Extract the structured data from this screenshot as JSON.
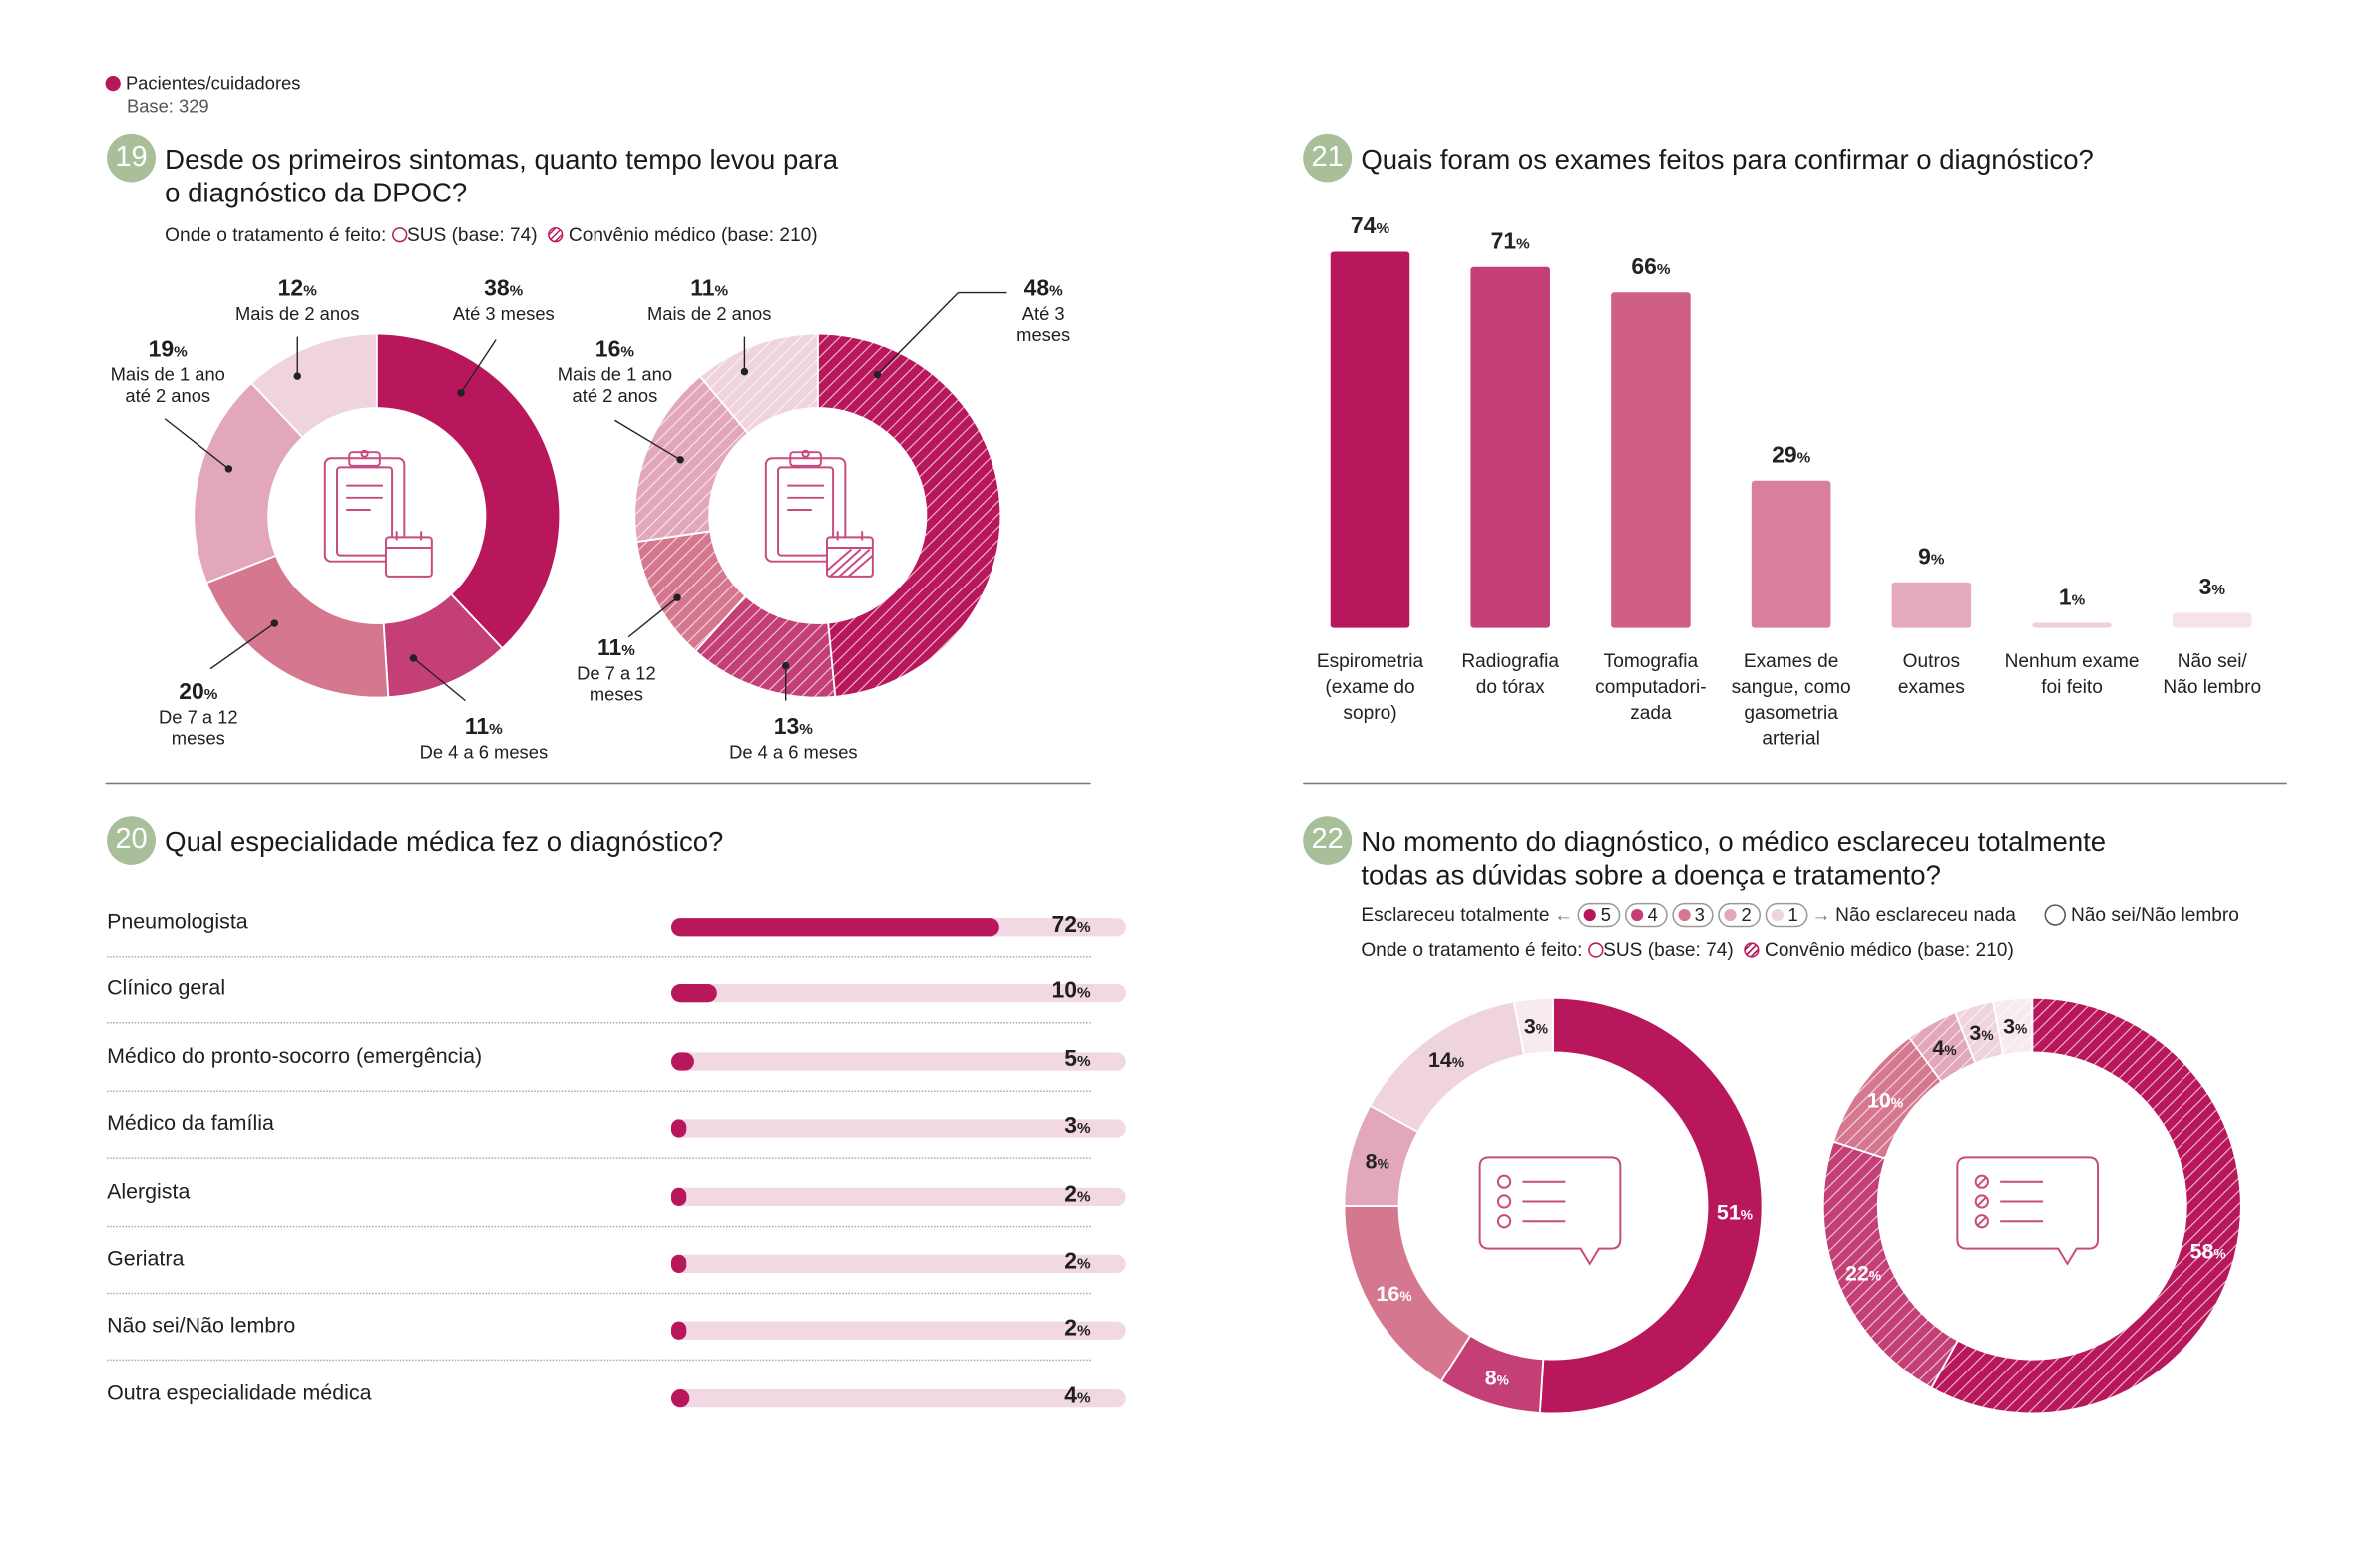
{
  "legend": {
    "label": "Pacientes/cuidadores",
    "base": "Base: 329",
    "color": "#b8175c"
  },
  "q19": {
    "number": "19",
    "title_line1": "Desde os primeiros sintomas, quanto tempo levou para",
    "title_line2": "o diagnóstico da DPOC?",
    "treatment_label": "Onde o tratamento é feito:",
    "sus_label": "SUS (base: 74)",
    "convenio_label": "Convênio médico (base: 210)"
  },
  "q20": {
    "number": "20",
    "title": "Qual especialidade médica fez o diagnóstico?"
  },
  "q21": {
    "number": "21",
    "title": "Quais foram os exames feitos para confirmar o diagnóstico?"
  },
  "q22": {
    "number": "22",
    "title_line1": "No momento do diagnóstico, o médico esclareceu totalmente",
    "title_line2": "todas as dúvidas sobre a doença e tratamento?",
    "scale_left": "Esclareceu totalmente",
    "scale_right": "Não esclareceu nada",
    "scale_points": [
      "5",
      "4",
      "3",
      "2",
      "1"
    ],
    "dont_know": "Não sei/Não lembro",
    "treatment_label": "Onde o tratamento é feito:",
    "sus_label": "SUS (base: 74)",
    "convenio_label": "Convênio médico (base: 210)"
  },
  "chart_data": [
    {
      "id": "q19-sus",
      "type": "pie",
      "style": "donut",
      "pattern": "solid",
      "categories": [
        "Até 3 meses",
        "De 4 a 6 meses",
        "De 7 a 12 meses",
        "Mais de 1 ano até 2 anos",
        "Mais de 2 anos"
      ],
      "values": [
        38,
        11,
        20,
        19,
        12
      ],
      "colors": [
        "#b8175c",
        "#c33f76",
        "#d5788f",
        "#e2a7ba",
        "#efd3dd"
      ]
    },
    {
      "id": "q19-convenio",
      "type": "pie",
      "style": "donut",
      "pattern": "hatched",
      "categories": [
        "Até 3 meses",
        "De 4 a 6 meses",
        "De 7 a 12 meses",
        "Mais de 1 ano até 2 anos",
        "Mais de 2 anos"
      ],
      "values": [
        48,
        13,
        11,
        16,
        11
      ],
      "colors": [
        "#b8175c",
        "#c33f76",
        "#d5788f",
        "#e2a7ba",
        "#efd3dd"
      ]
    },
    {
      "id": "q20",
      "type": "bar",
      "orientation": "horizontal",
      "categories": [
        "Pneumologista",
        "Clínico geral",
        "Médico do pronto-socorro (emergência)",
        "Médico da família",
        "Alergista",
        "Geriatra",
        "Não sei/Não lembro",
        "Outra especialidade médica"
      ],
      "values": [
        72,
        10,
        5,
        3,
        2,
        2,
        2,
        4
      ],
      "unit": "%",
      "xlim": [
        0,
        100
      ]
    },
    {
      "id": "q21",
      "type": "bar",
      "orientation": "vertical",
      "categories": [
        "Espirometria (exame do sopro)",
        "Radiografia do tórax",
        "Tomografia computadori-zada",
        "Exames de sangue, como gasometria arterial",
        "Outros exames",
        "Nenhum exame foi feito",
        "Não sei/ Não lembro"
      ],
      "category_lines": [
        [
          "Espirometria",
          "(exame do",
          "sopro)"
        ],
        [
          "Radiografia",
          "do tórax"
        ],
        [
          "Tomografia",
          "computadori-",
          "zada"
        ],
        [
          "Exames de",
          "sangue, como",
          "gasometria",
          "arterial"
        ],
        [
          "Outros",
          "exames"
        ],
        [
          "Nenhum exame",
          "foi feito"
        ],
        [
          "Não sei/",
          "Não lembro"
        ]
      ],
      "values": [
        74,
        71,
        66,
        29,
        9,
        1,
        3
      ],
      "unit": "%",
      "ylim": [
        0,
        74
      ],
      "colors": [
        "#b8175c",
        "#c33f76",
        "#d05f86",
        "#d97f9b",
        "#e5a9bd",
        "#eed0da",
        "#f6e4ea"
      ]
    },
    {
      "id": "q22-sus",
      "type": "pie",
      "style": "donut",
      "pattern": "solid",
      "categories": [
        "5",
        "4",
        "3",
        "2",
        "1",
        "Não sei/Não lembro"
      ],
      "values": [
        51,
        8,
        16,
        8,
        14,
        3
      ],
      "colors": [
        "#b8175c",
        "#c33f76",
        "#d5788f",
        "#e2a7ba",
        "#efd3dd",
        "#f8ebef"
      ]
    },
    {
      "id": "q22-convenio",
      "type": "pie",
      "style": "donut",
      "pattern": "hatched",
      "categories": [
        "5",
        "4",
        "3",
        "2",
        "1",
        "Não sei/Não lembro"
      ],
      "values": [
        58,
        22,
        10,
        4,
        3,
        3
      ],
      "colors": [
        "#b8175c",
        "#c33f76",
        "#d5788f",
        "#e2a7ba",
        "#efd3dd",
        "#f8ebef"
      ]
    }
  ]
}
